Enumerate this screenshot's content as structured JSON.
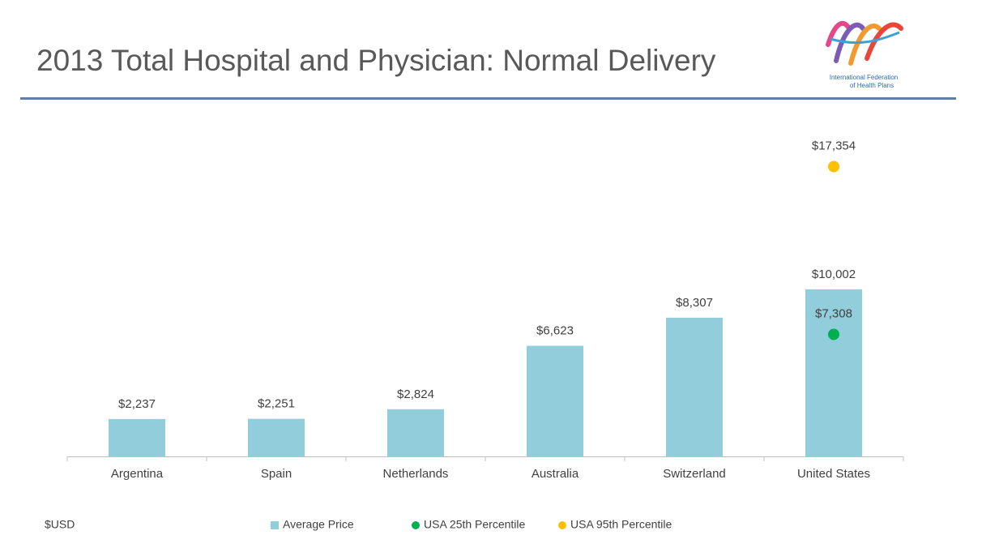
{
  "chart_data": {
    "type": "bar",
    "title": "2013 Total Hospital and Physician: Normal Delivery",
    "logo_text": [
      "International Federation",
      "of Health Plans"
    ],
    "unit_label": "$USD",
    "categories": [
      "Argentina",
      "Spain",
      "Netherlands",
      "Australia",
      "Switzerland",
      "United States"
    ],
    "ylim": [
      0,
      20000
    ],
    "series": [
      {
        "name": "Average Price",
        "type": "bar",
        "color": "#92cddc",
        "values": [
          2237,
          2251,
          2824,
          6623,
          8307,
          10002
        ],
        "value_labels": [
          "$2,237",
          "$2,251",
          "$2,824",
          "$6,623",
          "$8,307",
          "$10,002"
        ]
      },
      {
        "name": "USA 25th Percentile",
        "type": "scatter",
        "color": "#00b050",
        "values": [
          null,
          null,
          null,
          null,
          null,
          7308
        ],
        "value_labels": [
          null,
          null,
          null,
          null,
          null,
          "$7,308"
        ]
      },
      {
        "name": "USA 95th Percentile",
        "type": "scatter",
        "color": "#ffc000",
        "values": [
          null,
          null,
          null,
          null,
          null,
          17354
        ],
        "value_labels": [
          null,
          null,
          null,
          null,
          null,
          "$17,354"
        ]
      }
    ]
  }
}
